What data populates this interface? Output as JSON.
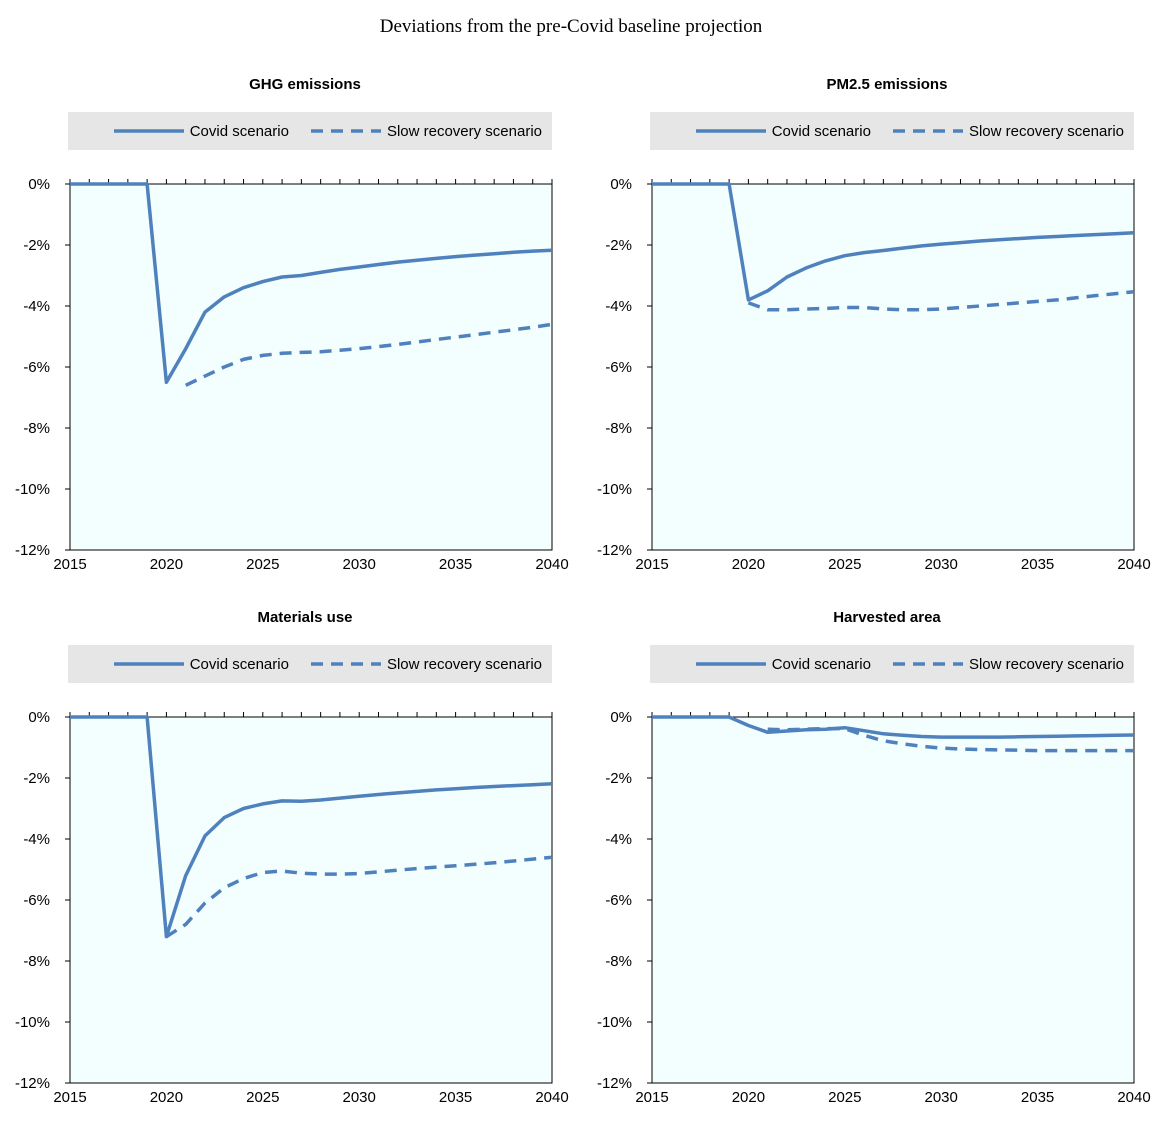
{
  "title": "Deviations from the pre-Covid baseline projection",
  "legend": {
    "covid": "Covid scenario",
    "slow": "Slow recovery scenario"
  },
  "colors": {
    "line": "#4f81bd",
    "plot_bg": "#f3fefe"
  },
  "chart_data": [
    {
      "type": "line",
      "title": "GHG emissions",
      "xlim": [
        2015,
        2040
      ],
      "ylim": [
        -12,
        0
      ],
      "xticks": [
        "2015",
        "2020",
        "2025",
        "2030",
        "2035",
        "2040"
      ],
      "yticks": [
        "0%",
        "-2%",
        "-4%",
        "-6%",
        "-8%",
        "-10%",
        "-12%"
      ],
      "series": [
        {
          "name": "Covid scenario",
          "style": "solid",
          "x": [
            2015,
            2016,
            2017,
            2018,
            2019,
            2020,
            2021,
            2022,
            2023,
            2024,
            2025,
            2026,
            2027,
            2028,
            2029,
            2030,
            2031,
            2032,
            2033,
            2034,
            2035,
            2036,
            2037,
            2038,
            2039,
            2040
          ],
          "y": [
            0,
            0,
            0,
            0,
            0,
            -6.5,
            -5.4,
            -4.2,
            -3.7,
            -3.4,
            -3.2,
            -3.05,
            -3.0,
            -2.9,
            -2.8,
            -2.72,
            -2.64,
            -2.56,
            -2.5,
            -2.44,
            -2.38,
            -2.33,
            -2.29,
            -2.24,
            -2.2,
            -2.17
          ]
        },
        {
          "name": "Slow recovery scenario",
          "style": "dashed",
          "x": [
            2021,
            2022,
            2023,
            2024,
            2025,
            2026,
            2027,
            2028,
            2029,
            2030,
            2031,
            2032,
            2033,
            2034,
            2035,
            2036,
            2037,
            2038,
            2039,
            2040
          ],
          "y": [
            -6.6,
            -6.3,
            -6.0,
            -5.75,
            -5.62,
            -5.55,
            -5.52,
            -5.5,
            -5.45,
            -5.4,
            -5.33,
            -5.26,
            -5.18,
            -5.1,
            -5.02,
            -4.94,
            -4.86,
            -4.78,
            -4.7,
            -4.6
          ]
        }
      ]
    },
    {
      "type": "line",
      "title": "PM2.5 emissions",
      "xlim": [
        2015,
        2040
      ],
      "ylim": [
        -12,
        0
      ],
      "xticks": [
        "2015",
        "2020",
        "2025",
        "2030",
        "2035",
        "2040"
      ],
      "yticks": [
        "0%",
        "-2%",
        "-4%",
        "-6%",
        "-8%",
        "-10%",
        "-12%"
      ],
      "series": [
        {
          "name": "Covid scenario",
          "style": "solid",
          "x": [
            2015,
            2016,
            2017,
            2018,
            2019,
            2020,
            2021,
            2022,
            2023,
            2024,
            2025,
            2026,
            2027,
            2028,
            2029,
            2030,
            2031,
            2032,
            2033,
            2034,
            2035,
            2036,
            2037,
            2038,
            2039,
            2040
          ],
          "y": [
            0,
            0,
            0,
            0,
            0,
            -3.8,
            -3.5,
            -3.05,
            -2.75,
            -2.52,
            -2.35,
            -2.25,
            -2.18,
            -2.1,
            -2.03,
            -1.97,
            -1.92,
            -1.87,
            -1.83,
            -1.79,
            -1.75,
            -1.72,
            -1.69,
            -1.66,
            -1.63,
            -1.6
          ]
        },
        {
          "name": "Slow recovery scenario",
          "style": "dashed",
          "x": [
            2020,
            2021,
            2022,
            2023,
            2024,
            2025,
            2026,
            2027,
            2028,
            2029,
            2030,
            2031,
            2032,
            2033,
            2034,
            2035,
            2036,
            2037,
            2038,
            2039,
            2040
          ],
          "y": [
            -3.9,
            -4.12,
            -4.12,
            -4.1,
            -4.08,
            -4.05,
            -4.05,
            -4.1,
            -4.12,
            -4.12,
            -4.1,
            -4.05,
            -4.0,
            -3.95,
            -3.9,
            -3.85,
            -3.8,
            -3.73,
            -3.66,
            -3.6,
            -3.53
          ]
        }
      ]
    },
    {
      "type": "line",
      "title": "Materials use",
      "xlim": [
        2015,
        2040
      ],
      "ylim": [
        -12,
        0
      ],
      "xticks": [
        "2015",
        "2020",
        "2025",
        "2030",
        "2035",
        "2040"
      ],
      "yticks": [
        "0%",
        "-2%",
        "-4%",
        "-6%",
        "-8%",
        "-10%",
        "-12%"
      ],
      "series": [
        {
          "name": "Covid scenario",
          "style": "solid",
          "x": [
            2015,
            2016,
            2017,
            2018,
            2019,
            2020,
            2021,
            2022,
            2023,
            2024,
            2025,
            2026,
            2027,
            2028,
            2029,
            2030,
            2031,
            2032,
            2033,
            2034,
            2035,
            2036,
            2037,
            2038,
            2039,
            2040
          ],
          "y": [
            0,
            0,
            0,
            0,
            0,
            -7.2,
            -5.2,
            -3.9,
            -3.3,
            -3.0,
            -2.85,
            -2.75,
            -2.76,
            -2.72,
            -2.66,
            -2.6,
            -2.54,
            -2.49,
            -2.44,
            -2.39,
            -2.35,
            -2.31,
            -2.28,
            -2.25,
            -2.22,
            -2.19
          ]
        },
        {
          "name": "Slow recovery scenario",
          "style": "dashed",
          "x": [
            2020,
            2021,
            2022,
            2023,
            2024,
            2025,
            2026,
            2027,
            2028,
            2029,
            2030,
            2031,
            2032,
            2033,
            2034,
            2035,
            2036,
            2037,
            2038,
            2039,
            2040
          ],
          "y": [
            -7.2,
            -6.8,
            -6.1,
            -5.6,
            -5.3,
            -5.1,
            -5.05,
            -5.12,
            -5.15,
            -5.15,
            -5.13,
            -5.08,
            -5.02,
            -4.97,
            -4.92,
            -4.88,
            -4.83,
            -4.78,
            -4.72,
            -4.66,
            -4.6
          ]
        }
      ]
    },
    {
      "type": "line",
      "title": "Harvested area",
      "xlim": [
        2015,
        2040
      ],
      "ylim": [
        -12,
        0
      ],
      "xticks": [
        "2015",
        "2020",
        "2025",
        "2030",
        "2035",
        "2040"
      ],
      "yticks": [
        "0%",
        "-2%",
        "-4%",
        "-6%",
        "-8%",
        "-10%",
        "-12%"
      ],
      "series": [
        {
          "name": "Covid scenario",
          "style": "solid",
          "x": [
            2015,
            2016,
            2017,
            2018,
            2019,
            2020,
            2021,
            2022,
            2023,
            2024,
            2025,
            2026,
            2027,
            2028,
            2029,
            2030,
            2031,
            2032,
            2033,
            2034,
            2035,
            2036,
            2037,
            2038,
            2039,
            2040
          ],
          "y": [
            0,
            0,
            0,
            0,
            0,
            -0.28,
            -0.5,
            -0.46,
            -0.42,
            -0.4,
            -0.35,
            -0.45,
            -0.55,
            -0.6,
            -0.64,
            -0.66,
            -0.66,
            -0.66,
            -0.66,
            -0.65,
            -0.64,
            -0.63,
            -0.62,
            -0.61,
            -0.6,
            -0.59
          ]
        },
        {
          "name": "Slow recovery scenario",
          "style": "dashed",
          "x": [
            2021,
            2022,
            2023,
            2024,
            2025,
            2026,
            2027,
            2028,
            2029,
            2030,
            2031,
            2032,
            2033,
            2034,
            2035,
            2036,
            2037,
            2038,
            2039,
            2040
          ],
          "y": [
            -0.4,
            -0.42,
            -0.4,
            -0.38,
            -0.38,
            -0.6,
            -0.78,
            -0.88,
            -0.96,
            -1.02,
            -1.05,
            -1.07,
            -1.08,
            -1.09,
            -1.1,
            -1.1,
            -1.1,
            -1.1,
            -1.1,
            -1.1
          ]
        }
      ]
    }
  ]
}
